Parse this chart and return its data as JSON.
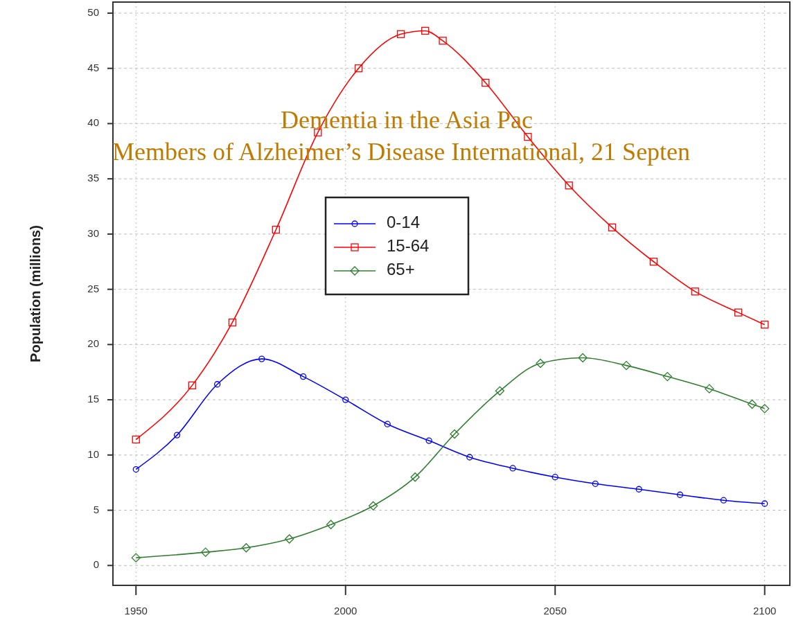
{
  "chart_data": {
    "type": "line",
    "ylabel": "Population (millions)",
    "xlim": [
      1944.5,
      2106
    ],
    "ylim": [
      -1.8,
      51
    ],
    "xticks": [
      1950,
      2000,
      2050,
      2100
    ],
    "yticks": [
      0,
      5,
      10,
      15,
      20,
      25,
      30,
      35,
      40,
      45,
      50
    ],
    "grid": true,
    "legend": "top",
    "line_style": "solid",
    "annotations": [
      "Dementia in the Asia Pac",
      "Members of Alzheimer’s Disease International, 21 Septen"
    ],
    "series": [
      {
        "name": "0-14",
        "color": "#0000ff",
        "marker": "circle",
        "x": [
          1950,
          1959.8,
          1969.4,
          1980,
          1989.9,
          2000,
          2010,
          2019.9,
          2029.6,
          2039.9,
          2050,
          2059.6,
          2070,
          2079.8,
          2090.2,
          2100
        ],
        "values": [
          8.7,
          11.8,
          16.4,
          18.7,
          17.1,
          15.0,
          12.8,
          11.3,
          9.8,
          8.8,
          8.0,
          7.4,
          6.9,
          6.4,
          5.9,
          5.6
        ]
      },
      {
        "name": "15-64",
        "color": "#ff0000",
        "marker": "square",
        "x": [
          1950,
          1963.4,
          1973,
          1983.4,
          1993.4,
          2003.1,
          2013.2,
          2019,
          2023.2,
          2033.4,
          2043.5,
          2053.3,
          2063.6,
          2073.5,
          2083.4,
          2093.7,
          2100
        ],
        "values": [
          11.4,
          16.3,
          22.0,
          30.4,
          39.2,
          45.0,
          48.1,
          48.4,
          47.5,
          43.7,
          38.8,
          34.4,
          30.6,
          27.5,
          24.8,
          22.9,
          21.8
        ]
      },
      {
        "name": "65+",
        "color": "#2e7d2e",
        "marker": "diamond",
        "x": [
          1950,
          1966.6,
          1976.3,
          1986.6,
          1996.5,
          2006.6,
          2016.6,
          2026,
          2036.8,
          2046.5,
          2056.6,
          2067,
          2076.8,
          2086.8,
          2097,
          2100
        ],
        "values": [
          0.7,
          1.2,
          1.6,
          2.4,
          3.7,
          5.4,
          8.0,
          11.9,
          15.8,
          18.3,
          18.8,
          18.1,
          17.1,
          16.0,
          14.6,
          14.2
        ]
      }
    ]
  }
}
